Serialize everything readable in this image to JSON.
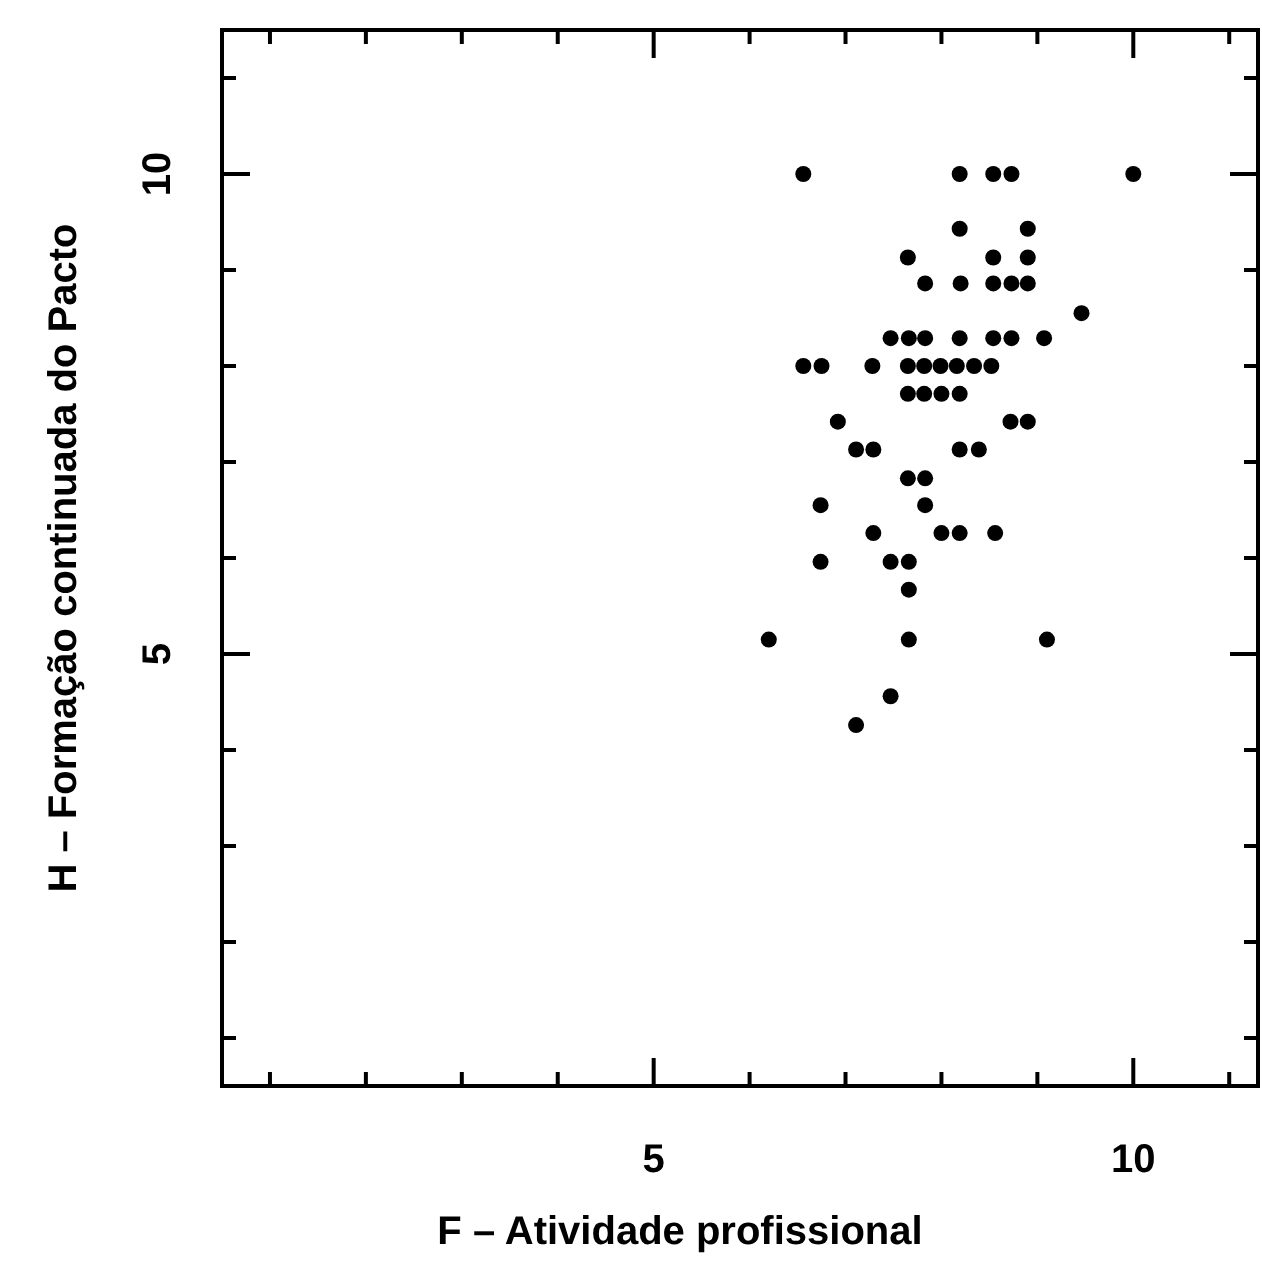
{
  "chart_data": {
    "type": "scatter",
    "xlabel": "F – Atividade profissional",
    "ylabel": "H – Formação continuada do Pacto",
    "xlim": [
      0.5,
      11.3
    ],
    "ylim": [
      0.5,
      11.5
    ],
    "xticks": [
      {
        "value": 1,
        "label": null
      },
      {
        "value": 2,
        "label": null
      },
      {
        "value": 3,
        "label": null
      },
      {
        "value": 4,
        "label": null
      },
      5,
      {
        "value": 6,
        "label": null
      },
      {
        "value": 7,
        "label": null
      },
      {
        "value": 8,
        "label": null
      },
      {
        "value": 9,
        "label": null
      },
      10,
      {
        "value": 11,
        "label": null
      }
    ],
    "yticks": [
      {
        "value": 1,
        "label": null
      },
      {
        "value": 2,
        "label": null
      },
      {
        "value": 3,
        "label": null
      },
      {
        "value": 4,
        "label": null
      },
      5,
      {
        "value": 6,
        "label": null
      },
      {
        "value": 7,
        "label": null
      },
      {
        "value": 8,
        "label": null
      },
      {
        "value": 9,
        "label": null
      },
      10,
      {
        "value": 11,
        "label": null
      }
    ],
    "grid": false,
    "marker": "circle",
    "series": [
      {
        "color": "#000000",
        "x": [
          6.56,
          8.19,
          8.54,
          8.73,
          10,
          8.19,
          8.9,
          7.65,
          8.54,
          8.9,
          7.83,
          8.2,
          8.54,
          8.73,
          8.9,
          9.46,
          7.47,
          7.66,
          7.83,
          8.19,
          8.54,
          8.73,
          9.07,
          6.56,
          6.75,
          7.28,
          7.65,
          7.82,
          7.99,
          8.16,
          8.34,
          8.52,
          7.65,
          7.82,
          8.0,
          8.19,
          6.92,
          8.72,
          8.9,
          7.11,
          7.29,
          8.19,
          8.39,
          7.65,
          7.83,
          6.74,
          7.83,
          7.29,
          8.0,
          8.19,
          8.56,
          6.74,
          7.47,
          7.66,
          7.66,
          6.2,
          7.66,
          9.1,
          7.47,
          7.11
        ],
        "values": [
          10,
          10,
          10,
          10,
          10,
          9.43,
          9.43,
          9.13,
          9.13,
          9.13,
          8.86,
          8.86,
          8.86,
          8.86,
          8.86,
          8.55,
          8.29,
          8.29,
          8.29,
          8.29,
          8.29,
          8.29,
          8.29,
          8,
          8,
          8,
          8,
          8,
          8,
          8,
          8,
          8,
          7.71,
          7.71,
          7.71,
          7.71,
          7.42,
          7.42,
          7.42,
          7.13,
          7.13,
          7.13,
          7.13,
          6.83,
          6.83,
          6.55,
          6.55,
          6.26,
          6.26,
          6.26,
          6.26,
          5.96,
          5.96,
          5.96,
          5.67,
          5.15,
          5.15,
          5.15,
          4.56,
          4.26
        ]
      }
    ]
  }
}
